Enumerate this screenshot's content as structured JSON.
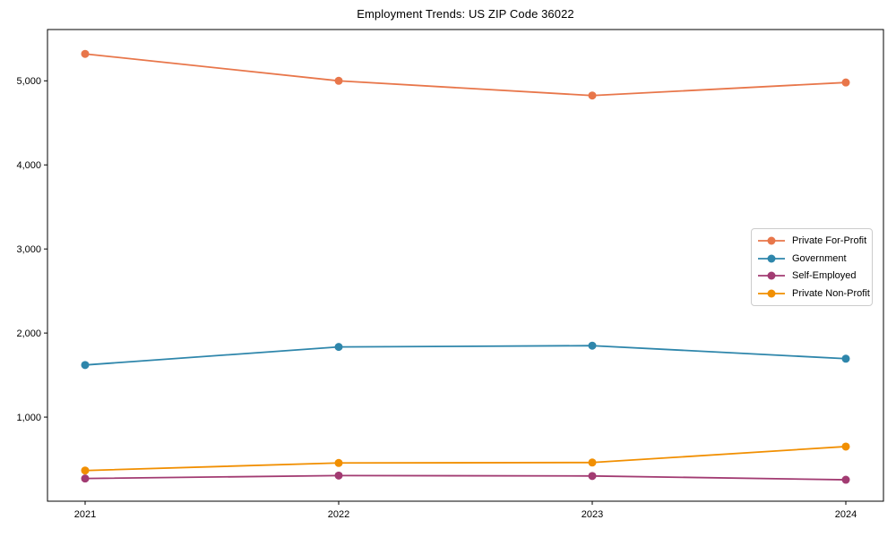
{
  "figure": {
    "background": "#ffffff",
    "axis_color": "#000000",
    "text_color": "#000000",
    "legend_border_color": "#cccccc"
  },
  "chart_data": {
    "type": "line",
    "title": "Employment Trends: US ZIP Code 36022",
    "xlabel": "",
    "ylabel": "",
    "categories": [
      "2021",
      "2022",
      "2023",
      "2024"
    ],
    "series": [
      {
        "name": "Private For-Profit",
        "color": "#E8764A",
        "values": [
          5320,
          5000,
          4825,
          4980
        ]
      },
      {
        "name": "Government",
        "color": "#2E86AB",
        "values": [
          1620,
          1835,
          1850,
          1695
        ]
      },
      {
        "name": "Self-Employed",
        "color": "#A23B72",
        "values": [
          270,
          305,
          300,
          255
        ]
      },
      {
        "name": "Private Non-Profit",
        "color": "#F18F01",
        "values": [
          365,
          455,
          460,
          650
        ]
      }
    ],
    "ylim": [
      0,
      5610
    ],
    "yticks": [
      1000,
      2000,
      3000,
      4000,
      5000
    ],
    "ytick_labels": [
      "1,000",
      "2,000",
      "3,000",
      "4,000",
      "5,000"
    ],
    "grid": false,
    "marker": "circle",
    "legend_position": "right-center",
    "legend_entries": [
      "Private For-Profit",
      "Government",
      "Self-Employed",
      "Private Non-Profit"
    ]
  }
}
